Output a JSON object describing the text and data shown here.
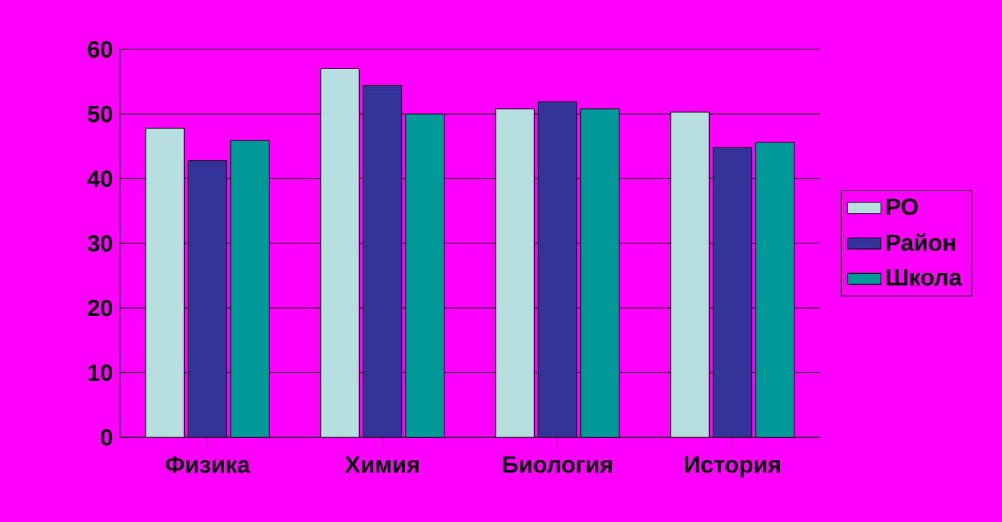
{
  "chart_data": {
    "type": "bar",
    "categories": [
      "Физика",
      "Химия",
      "Биология",
      "История"
    ],
    "series": [
      {
        "name": "РО",
        "color": "#b8dfe0",
        "values": [
          47.8,
          57,
          50.8,
          50.3
        ]
      },
      {
        "name": "Район",
        "color": "#333399",
        "values": [
          42.8,
          54.4,
          51.9,
          44.8
        ]
      },
      {
        "name": "Школа",
        "color": "#009999",
        "values": [
          45.9,
          50,
          50.8,
          45.6
        ]
      }
    ],
    "ylim": [
      0,
      60
    ],
    "yticks": [
      0,
      10,
      20,
      30,
      40,
      50,
      60
    ],
    "grid": "y",
    "legend": "right"
  }
}
